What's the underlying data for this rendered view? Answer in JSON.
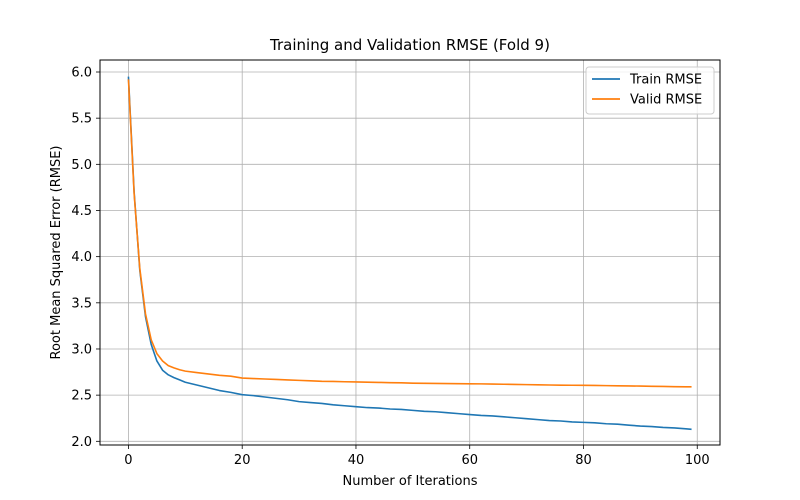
{
  "chart_data": {
    "type": "line",
    "title": "Training and Validation RMSE (Fold 9)",
    "xlabel": "Number of Iterations",
    "ylabel": "Root Mean Squared Error (RMSE)",
    "xlim": [
      -5,
      104
    ],
    "ylim": [
      1.96,
      6.13
    ],
    "xticks": [
      0,
      20,
      40,
      60,
      80,
      100
    ],
    "yticks": [
      2.0,
      2.5,
      3.0,
      3.5,
      4.0,
      4.5,
      5.0,
      5.5,
      6.0
    ],
    "xtick_labels": [
      "0",
      "20",
      "40",
      "60",
      "80",
      "100"
    ],
    "ytick_labels": [
      "2.0",
      "2.5",
      "3.0",
      "3.5",
      "4.0",
      "4.5",
      "5.0",
      "5.5",
      "6.0"
    ],
    "grid": true,
    "legend_position": "top-right",
    "series": [
      {
        "name": "Train RMSE",
        "color": "#1f77b4",
        "x": [
          0,
          1,
          2,
          3,
          4,
          5,
          6,
          7,
          8,
          9,
          10,
          12,
          14,
          16,
          18,
          20,
          22,
          24,
          26,
          28,
          30,
          32,
          34,
          36,
          38,
          40,
          42,
          44,
          46,
          48,
          50,
          52,
          54,
          56,
          58,
          60,
          62,
          64,
          66,
          68,
          70,
          72,
          74,
          76,
          78,
          80,
          82,
          84,
          86,
          88,
          90,
          92,
          94,
          96,
          98,
          99
        ],
        "y": [
          5.95,
          4.7,
          3.85,
          3.35,
          3.05,
          2.87,
          2.77,
          2.72,
          2.69,
          2.665,
          2.64,
          2.61,
          2.58,
          2.55,
          2.53,
          2.505,
          2.495,
          2.48,
          2.465,
          2.45,
          2.43,
          2.42,
          2.41,
          2.395,
          2.385,
          2.375,
          2.365,
          2.36,
          2.35,
          2.345,
          2.335,
          2.325,
          2.32,
          2.31,
          2.3,
          2.29,
          2.28,
          2.275,
          2.265,
          2.255,
          2.245,
          2.235,
          2.225,
          2.22,
          2.21,
          2.205,
          2.2,
          2.19,
          2.185,
          2.175,
          2.165,
          2.16,
          2.15,
          2.145,
          2.135,
          2.13
        ]
      },
      {
        "name": "Valid RMSE",
        "color": "#ff7f0e",
        "x": [
          0,
          1,
          2,
          3,
          4,
          5,
          6,
          7,
          8,
          9,
          10,
          12,
          14,
          16,
          18,
          20,
          22,
          24,
          26,
          28,
          30,
          32,
          34,
          36,
          38,
          40,
          42,
          44,
          46,
          48,
          50,
          52,
          54,
          56,
          58,
          60,
          62,
          64,
          66,
          68,
          70,
          72,
          74,
          76,
          78,
          80,
          82,
          84,
          86,
          88,
          90,
          92,
          94,
          96,
          98,
          99
        ],
        "y": [
          5.92,
          4.68,
          3.87,
          3.38,
          3.1,
          2.95,
          2.87,
          2.82,
          2.795,
          2.775,
          2.76,
          2.745,
          2.73,
          2.715,
          2.705,
          2.685,
          2.68,
          2.675,
          2.67,
          2.665,
          2.66,
          2.655,
          2.65,
          2.648,
          2.645,
          2.643,
          2.64,
          2.638,
          2.635,
          2.633,
          2.63,
          2.628,
          2.627,
          2.625,
          2.624,
          2.623,
          2.622,
          2.62,
          2.618,
          2.616,
          2.614,
          2.612,
          2.61,
          2.608,
          2.607,
          2.606,
          2.605,
          2.603,
          2.601,
          2.6,
          2.598,
          2.596,
          2.594,
          2.592,
          2.59,
          2.59
        ]
      }
    ]
  }
}
